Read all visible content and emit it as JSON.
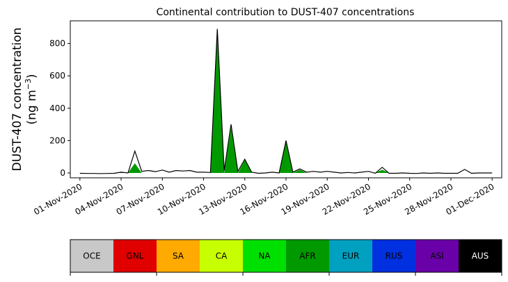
{
  "chart_data": {
    "type": "area",
    "stacked": true,
    "title": "Continental contribution to DUST-407 concentrations",
    "ylabel_line1": "DUST-407 concentration",
    "ylabel_line2_prefix": "(ng m",
    "ylabel_line2_sup": "−3",
    "ylabel_line2_suffix": ")",
    "ylim": [
      -30,
      940
    ],
    "xlim": [
      -0.7,
      30.7
    ],
    "yticks": [
      0,
      200,
      400,
      600,
      800
    ],
    "xticks": [
      {
        "x": 0,
        "label": "01-Nov-2020"
      },
      {
        "x": 3,
        "label": "04-Nov-2020"
      },
      {
        "x": 6,
        "label": "07-Nov-2020"
      },
      {
        "x": 9,
        "label": "10-Nov-2020"
      },
      {
        "x": 12,
        "label": "13-Nov-2020"
      },
      {
        "x": 15,
        "label": "16-Nov-2020"
      },
      {
        "x": 18,
        "label": "19-Nov-2020"
      },
      {
        "x": 21,
        "label": "22-Nov-2020"
      },
      {
        "x": 24,
        "label": "25-Nov-2020"
      },
      {
        "x": 27,
        "label": "28-Nov-2020"
      },
      {
        "x": 30,
        "label": "01-Dec-2020"
      }
    ],
    "x": [
      0,
      0.5,
      1,
      1.5,
      2,
      2.5,
      3,
      3.5,
      4,
      4.5,
      5,
      5.5,
      6,
      6.5,
      7,
      7.5,
      8,
      8.5,
      9,
      9.5,
      10,
      10.5,
      11,
      11.5,
      12,
      12.5,
      13,
      13.5,
      14,
      14.5,
      15,
      15.5,
      16,
      16.5,
      17,
      17.5,
      18,
      18.5,
      19,
      19.5,
      20,
      20.5,
      21,
      21.5,
      22,
      22.5,
      23,
      23.5,
      24,
      24.5,
      25,
      25.5,
      26,
      26.5,
      27,
      27.5,
      28,
      28.5,
      29,
      29.5,
      30
    ],
    "series": [
      {
        "name": "OCE",
        "color": "#c8c8c8",
        "values": [
          0,
          0,
          0,
          0,
          0,
          0,
          0,
          0,
          0,
          0,
          0,
          0,
          0,
          0,
          0,
          0,
          0,
          0,
          0,
          0,
          0,
          0,
          0,
          0,
          0,
          0,
          0,
          0,
          0,
          0,
          0,
          0,
          0,
          0,
          0,
          0,
          0,
          0,
          0,
          0,
          0,
          0,
          0,
          0,
          0,
          0,
          0,
          0,
          0,
          0,
          0,
          0,
          0,
          0,
          0,
          0,
          0,
          0,
          0,
          0,
          0
        ]
      },
      {
        "name": "GNL",
        "color": "#e00000",
        "values": [
          0,
          0,
          0,
          0,
          0,
          0,
          0,
          0,
          0,
          0,
          0,
          0,
          0,
          0,
          0,
          0,
          0,
          0,
          0,
          0,
          0,
          0,
          0,
          0,
          0,
          0,
          0,
          0,
          0,
          0,
          0,
          0,
          0,
          0,
          0,
          0,
          0,
          0,
          0,
          0,
          0,
          0,
          0,
          0,
          0,
          0,
          0,
          0,
          0,
          0,
          0,
          0,
          0,
          0,
          0,
          0,
          0,
          0,
          0,
          0,
          0
        ]
      },
      {
        "name": "SA",
        "color": "#ffaa00",
        "values": [
          0,
          0,
          0,
          0,
          0,
          0,
          0,
          0,
          0,
          0,
          0,
          0,
          0,
          0,
          0,
          0,
          0,
          0,
          0,
          0,
          0,
          0,
          0,
          0,
          0,
          0,
          0,
          0,
          0,
          0,
          0,
          0,
          0,
          0,
          0,
          0,
          0,
          0,
          0,
          0,
          0,
          0,
          0,
          0,
          0,
          0,
          0,
          0,
          0,
          0,
          0,
          0,
          0,
          0,
          0,
          0,
          0,
          0,
          0,
          0,
          0
        ]
      },
      {
        "name": "CA",
        "color": "#c8ff00",
        "values": [
          0,
          0,
          0,
          0,
          0,
          0,
          0,
          0,
          0,
          0,
          0,
          0,
          0,
          0,
          0,
          0,
          0,
          0,
          0,
          0,
          0,
          0,
          0,
          0,
          0,
          0,
          0,
          0,
          0,
          0,
          0,
          0,
          0,
          0,
          0,
          0,
          0,
          0,
          0,
          0,
          0,
          0,
          0,
          0,
          0,
          0,
          0,
          0,
          0,
          0,
          0,
          0,
          0,
          0,
          0,
          0,
          0,
          0,
          0,
          0,
          0
        ]
      },
      {
        "name": "NA",
        "color": "#00e000",
        "values": [
          0,
          0,
          0,
          0,
          0,
          0,
          0,
          0,
          0,
          0,
          0,
          0,
          0,
          0,
          0,
          0,
          0,
          0,
          0,
          0,
          0,
          0,
          0,
          0,
          0,
          0,
          0,
          0,
          0,
          0,
          0,
          0,
          0,
          0,
          0,
          0,
          0,
          0,
          0,
          0,
          0,
          0,
          0,
          0,
          0,
          0,
          0,
          0,
          0,
          0,
          0,
          0,
          0,
          0,
          0,
          0,
          0,
          0,
          0,
          0,
          0
        ]
      },
      {
        "name": "AFR",
        "color": "#009a00",
        "values": [
          0,
          0,
          0,
          0,
          0,
          0,
          5,
          0,
          60,
          0,
          0,
          0,
          0,
          0,
          0,
          0,
          0,
          0,
          0,
          0,
          890,
          0,
          280,
          0,
          80,
          0,
          0,
          0,
          0,
          0,
          195,
          0,
          20,
          0,
          0,
          0,
          0,
          0,
          0,
          0,
          0,
          0,
          0,
          0,
          20,
          0,
          0,
          0,
          0,
          0,
          0,
          0,
          0,
          0,
          0,
          0,
          0,
          0,
          0,
          0,
          0
        ]
      },
      {
        "name": "EUR",
        "color": "#00a0c0",
        "values": [
          0,
          0,
          0,
          0,
          0,
          0,
          0,
          0,
          0,
          0,
          0,
          0,
          0,
          0,
          0,
          0,
          0,
          0,
          0,
          0,
          0,
          0,
          0,
          0,
          0,
          0,
          0,
          0,
          0,
          0,
          0,
          0,
          0,
          0,
          0,
          0,
          0,
          0,
          0,
          0,
          0,
          0,
          0,
          0,
          0,
          0,
          0,
          0,
          0,
          0,
          0,
          0,
          0,
          0,
          0,
          0,
          0,
          0,
          0,
          0,
          0
        ]
      },
      {
        "name": "RUS",
        "color": "#0030e0",
        "values": [
          0,
          0,
          0,
          0,
          0,
          0,
          0,
          0,
          0,
          0,
          0,
          0,
          0,
          0,
          0,
          0,
          0,
          0,
          0,
          0,
          0,
          0,
          0,
          0,
          0,
          0,
          0,
          0,
          0,
          0,
          0,
          0,
          0,
          0,
          0,
          0,
          0,
          0,
          0,
          0,
          0,
          0,
          0,
          0,
          0,
          0,
          0,
          0,
          0,
          0,
          0,
          0,
          0,
          0,
          0,
          0,
          0,
          0,
          0,
          0,
          0
        ]
      },
      {
        "name": "ASI",
        "color": "#6a00a8",
        "values": [
          0,
          0,
          0,
          0,
          0,
          0,
          0,
          0,
          0,
          0,
          0,
          0,
          0,
          0,
          0,
          0,
          0,
          0,
          0,
          0,
          0,
          0,
          0,
          0,
          0,
          0,
          0,
          0,
          0,
          0,
          0,
          0,
          0,
          0,
          0,
          0,
          0,
          0,
          0,
          0,
          0,
          0,
          0,
          0,
          0,
          0,
          0,
          0,
          0,
          0,
          0,
          0,
          0,
          0,
          0,
          0,
          0,
          0,
          0,
          0,
          0
        ]
      },
      {
        "name": "AUS",
        "color": "#000000",
        "values": [
          0,
          0,
          0,
          0,
          0,
          0,
          0,
          0,
          0,
          0,
          0,
          0,
          0,
          0,
          0,
          0,
          0,
          0,
          0,
          0,
          0,
          0,
          0,
          0,
          0,
          0,
          0,
          0,
          0,
          0,
          0,
          0,
          0,
          0,
          0,
          0,
          0,
          0,
          0,
          0,
          0,
          0,
          0,
          0,
          0,
          0,
          0,
          0,
          0,
          0,
          0,
          0,
          0,
          0,
          0,
          0,
          0,
          0,
          0,
          0,
          0
        ]
      }
    ],
    "total": [
      -2,
      -3,
      -3,
      -4,
      -3,
      -2,
      5,
      0,
      135,
      10,
      15,
      8,
      18,
      5,
      15,
      12,
      15,
      5,
      5,
      3,
      890,
      15,
      300,
      10,
      85,
      5,
      -2,
      0,
      5,
      0,
      200,
      5,
      25,
      5,
      10,
      5,
      10,
      5,
      0,
      3,
      0,
      5,
      10,
      -2,
      35,
      -2,
      -2,
      0,
      -2,
      -3,
      0,
      -2,
      0,
      -2,
      -2,
      -2,
      22,
      -2,
      0,
      0,
      0
    ],
    "colorbar_labels": [
      "OCE",
      "GNL",
      "SA",
      "CA",
      "NA",
      "AFR",
      "EUR",
      "RUS",
      "ASI",
      "AUS"
    ],
    "colorbar_colors": [
      "#c8c8c8",
      "#e00000",
      "#ffaa00",
      "#c8ff00",
      "#00e000",
      "#009a00",
      "#00a0c0",
      "#0030e0",
      "#6a00a8",
      "#000000"
    ],
    "colorbar_text_colors": [
      "#000000",
      "#000000",
      "#000000",
      "#000000",
      "#000000",
      "#000000",
      "#000000",
      "#000000",
      "#000000",
      "#ffffff"
    ]
  }
}
